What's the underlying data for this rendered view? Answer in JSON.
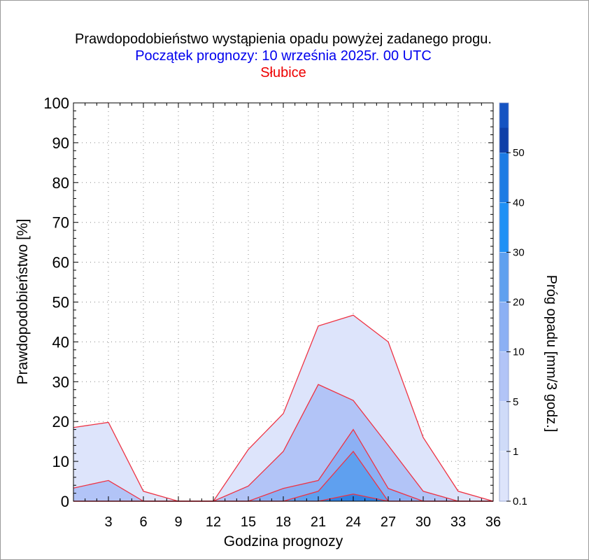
{
  "chart_data": {
    "type": "area",
    "title": "Prawdopodobieństwo wystąpienia opadu powyżej zadanego progu.",
    "subtitle": "Początek prognozy: 10 września 2025r. 00 UTC",
    "station": "Słubice",
    "xlabel": "Godzina prognozy",
    "ylabel": "Prawdopodobieństwo [%]",
    "xlim": [
      0,
      36
    ],
    "ylim": [
      0,
      100
    ],
    "x_ticks": [
      3,
      6,
      9,
      12,
      15,
      18,
      21,
      24,
      27,
      30,
      33,
      36
    ],
    "y_ticks": [
      0,
      10,
      20,
      30,
      40,
      50,
      60,
      70,
      80,
      90,
      100
    ],
    "x": [
      0,
      3,
      6,
      9,
      12,
      15,
      18,
      21,
      24,
      27,
      30,
      33,
      36
    ],
    "series": [
      {
        "threshold": 0.1,
        "color": "#dde4fb",
        "values": [
          18.5,
          19.8,
          2.5,
          0,
          0,
          13,
          22,
          44,
          46.7,
          40,
          16,
          2.5,
          0
        ]
      },
      {
        "threshold": 1,
        "color": "#b2c4f7",
        "values": [
          3.3,
          5.2,
          0,
          0,
          0,
          3.8,
          12.5,
          29.3,
          25.3,
          14,
          2.5,
          0,
          0
        ]
      },
      {
        "threshold": 5,
        "color": "#8cb0f4",
        "values": [
          0,
          0,
          0,
          0,
          0,
          0,
          3.2,
          5.2,
          18,
          3.2,
          0,
          0,
          0
        ]
      },
      {
        "threshold": 10,
        "color": "#5fa0ef",
        "values": [
          0,
          0,
          0,
          0,
          0,
          0,
          0,
          2.5,
          12.5,
          0,
          0,
          0,
          0
        ]
      },
      {
        "threshold": 20,
        "color": "#2f82e4",
        "values": [
          0,
          0,
          0,
          0,
          0,
          0,
          0,
          0,
          1.8,
          0,
          0,
          0,
          0
        ]
      }
    ],
    "colorbar": {
      "label": "Próg opadu [mm/3 godz.]",
      "tick_labels": [
        "0.1",
        "1",
        "5",
        "10",
        "20",
        "30",
        "40",
        "50"
      ],
      "colors": [
        "#dde4fb",
        "#cfdbf8",
        "#b2c4f7",
        "#8cb0f4",
        "#5fa0ef",
        "#1e90f5",
        "#1c7be4",
        "#1a67d4",
        "#1553c2",
        "#0f3fa8"
      ]
    },
    "grid": true,
    "line_color": "#ee3344"
  }
}
